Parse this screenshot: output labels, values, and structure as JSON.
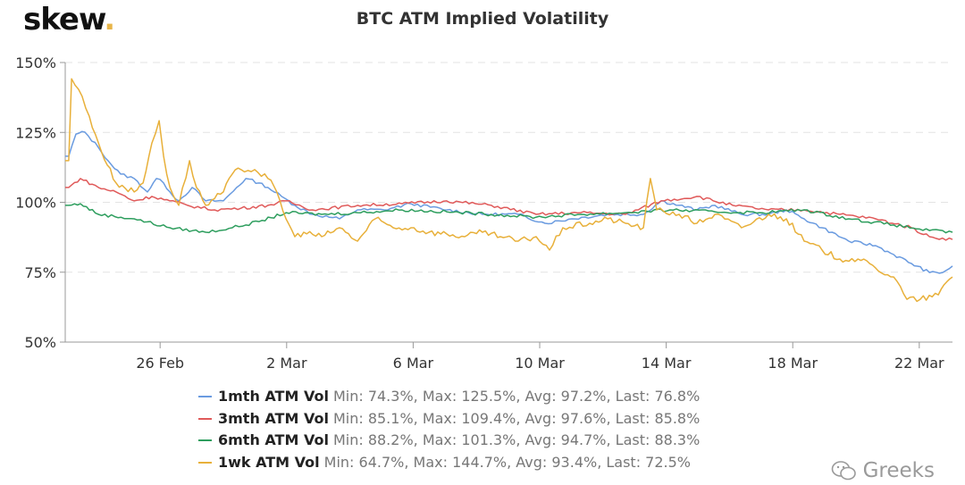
{
  "logo": {
    "text": "skew",
    "dot": "."
  },
  "watermark": {
    "text": "Greeks",
    "icon": "wechat-icon"
  },
  "chart_data": {
    "type": "line",
    "title": "BTC ATM Implied Volatility",
    "xlabel": "",
    "ylabel": "",
    "x_unit": "days since 23 Feb",
    "xlim": [
      0,
      28.05
    ],
    "ylim": [
      50,
      150
    ],
    "yticks": [
      {
        "v": 50,
        "label": "50%"
      },
      {
        "v": 75,
        "label": "75%"
      },
      {
        "v": 100,
        "label": "100%"
      },
      {
        "v": 125,
        "label": "125%"
      },
      {
        "v": 150,
        "label": "150%"
      }
    ],
    "xticks": [
      {
        "v": 3,
        "label": "26 Feb"
      },
      {
        "v": 7,
        "label": "2 Mar"
      },
      {
        "v": 11,
        "label": "6 Mar"
      },
      {
        "v": 15,
        "label": "10 Mar"
      },
      {
        "v": 19,
        "label": "14 Mar"
      },
      {
        "v": 23,
        "label": "18 Mar"
      },
      {
        "v": 27,
        "label": "22 Mar"
      }
    ],
    "grid": "horizontal dashed",
    "legend_position": "bottom",
    "series": [
      {
        "name": "1mth ATM Vol",
        "stats": "Min: 74.3%, Max: 125.5%, Avg: 97.2%, Last: 76.8%",
        "color": "#6a9be0",
        "points": [
          [
            0,
            116.5
          ],
          [
            0.11,
            116.5
          ],
          [
            0.34,
            124.4
          ],
          [
            0.62,
            125.1
          ],
          [
            1.05,
            119.6
          ],
          [
            1.47,
            113.3
          ],
          [
            1.75,
            110.1
          ],
          [
            2.18,
            108.5
          ],
          [
            2.6,
            103.7
          ],
          [
            2.88,
            108.5
          ],
          [
            3.11,
            106.9
          ],
          [
            3.31,
            103.7
          ],
          [
            3.59,
            100.5
          ],
          [
            4.01,
            105.3
          ],
          [
            4.44,
            100.5
          ],
          [
            5.0,
            100.5
          ],
          [
            5.42,
            105.3
          ],
          [
            5.71,
            108.5
          ],
          [
            6.13,
            106.9
          ],
          [
            6.41,
            105.3
          ],
          [
            6.84,
            102.1
          ],
          [
            7.26,
            98.9
          ],
          [
            7.82,
            95.7
          ],
          [
            8.67,
            94.1
          ],
          [
            9.24,
            97.3
          ],
          [
            10.08,
            97.3
          ],
          [
            10.93,
            99.5
          ],
          [
            12.06,
            97.3
          ],
          [
            13.19,
            95.7
          ],
          [
            14.32,
            95.7
          ],
          [
            15.17,
            92.5
          ],
          [
            16.02,
            94.1
          ],
          [
            17.15,
            95.7
          ],
          [
            18.28,
            95.7
          ],
          [
            18.84,
            100.5
          ],
          [
            19.41,
            98.9
          ],
          [
            19.97,
            97.3
          ],
          [
            20.54,
            98.9
          ],
          [
            21.38,
            95.7
          ],
          [
            22.23,
            95.7
          ],
          [
            22.8,
            97.3
          ],
          [
            23.36,
            94.1
          ],
          [
            23.93,
            90.9
          ],
          [
            24.77,
            86.1
          ],
          [
            25.62,
            84.5
          ],
          [
            26.19,
            81.3
          ],
          [
            26.75,
            78.1
          ],
          [
            27.32,
            74.9
          ],
          [
            27.74,
            74.9
          ],
          [
            28.05,
            77.2
          ]
        ]
      },
      {
        "name": "3mth ATM Vol",
        "stats": "Min: 85.1%, Max: 109.4%, Avg: 97.6%, Last: 85.8%",
        "color": "#e05a5a",
        "points": [
          [
            0,
            105.3
          ],
          [
            0.11,
            105.3
          ],
          [
            0.48,
            108.5
          ],
          [
            1.05,
            105.3
          ],
          [
            1.61,
            103.7
          ],
          [
            2.18,
            100.5
          ],
          [
            2.74,
            102.1
          ],
          [
            3.31,
            100.5
          ],
          [
            3.87,
            98.9
          ],
          [
            4.72,
            97.3
          ],
          [
            5.56,
            97.9
          ],
          [
            6.41,
            98.9
          ],
          [
            6.98,
            100.5
          ],
          [
            7.82,
            97.3
          ],
          [
            9.24,
            98.9
          ],
          [
            10.65,
            99.5
          ],
          [
            12.06,
            100.5
          ],
          [
            13.47,
            98.9
          ],
          [
            14.89,
            95.7
          ],
          [
            16.3,
            96.3
          ],
          [
            17.71,
            95.7
          ],
          [
            18.84,
            100.5
          ],
          [
            19.97,
            102.1
          ],
          [
            21.1,
            98.9
          ],
          [
            22.23,
            97.3
          ],
          [
            23.36,
            97.3
          ],
          [
            24.49,
            95.7
          ],
          [
            25.62,
            94.1
          ],
          [
            26.75,
            90.9
          ],
          [
            27.32,
            87.7
          ],
          [
            28.05,
            86.7
          ]
        ]
      },
      {
        "name": "6mth ATM Vol",
        "stats": "Min: 88.2%, Max: 101.3%, Avg: 94.7%, Last: 88.3%",
        "color": "#2e9e5e",
        "points": [
          [
            0,
            98.9
          ],
          [
            0.11,
            98.9
          ],
          [
            0.48,
            99.5
          ],
          [
            1.05,
            95.7
          ],
          [
            2.18,
            94.1
          ],
          [
            3.31,
            90.9
          ],
          [
            4.44,
            89.3
          ],
          [
            5.28,
            90.9
          ],
          [
            6.13,
            93.1
          ],
          [
            6.98,
            96.3
          ],
          [
            8.11,
            95.7
          ],
          [
            9.24,
            96.3
          ],
          [
            10.65,
            97.3
          ],
          [
            12.06,
            96.6
          ],
          [
            13.47,
            95.7
          ],
          [
            14.89,
            94.7
          ],
          [
            16.3,
            95.7
          ],
          [
            17.71,
            96.3
          ],
          [
            19.12,
            97.3
          ],
          [
            20.54,
            96.6
          ],
          [
            21.95,
            96.3
          ],
          [
            23.36,
            97.3
          ],
          [
            24.77,
            94.1
          ],
          [
            26.19,
            91.9
          ],
          [
            27.32,
            89.9
          ],
          [
            28.05,
            89.3
          ]
        ]
      },
      {
        "name": "1wk ATM Vol",
        "stats": "Min: 64.7%, Max: 144.7%, Avg: 93.4%, Last: 72.5%",
        "color": "#e8b03a",
        "points": [
          [
            0,
            114.9
          ],
          [
            0.11,
            114.9
          ],
          [
            0.2,
            144.2
          ],
          [
            0.42,
            140.4
          ],
          [
            0.76,
            130.8
          ],
          [
            1.05,
            121.2
          ],
          [
            1.33,
            113.3
          ],
          [
            1.61,
            106.9
          ],
          [
            2.18,
            103.7
          ],
          [
            2.46,
            106.9
          ],
          [
            2.74,
            121.2
          ],
          [
            2.97,
            129.2
          ],
          [
            3.11,
            116.5
          ],
          [
            3.31,
            105.3
          ],
          [
            3.59,
            98.9
          ],
          [
            3.93,
            114.9
          ],
          [
            4.15,
            105.3
          ],
          [
            4.44,
            98.9
          ],
          [
            5.0,
            103.7
          ],
          [
            5.28,
            110.1
          ],
          [
            5.56,
            111.7
          ],
          [
            5.99,
            111.7
          ],
          [
            6.41,
            108.5
          ],
          [
            6.69,
            103.7
          ],
          [
            6.98,
            94.1
          ],
          [
            7.26,
            87.7
          ],
          [
            7.54,
            89.3
          ],
          [
            8.11,
            87.7
          ],
          [
            8.67,
            90.9
          ],
          [
            9.24,
            86.1
          ],
          [
            9.8,
            94.1
          ],
          [
            10.37,
            90.9
          ],
          [
            10.93,
            90.9
          ],
          [
            11.5,
            89.3
          ],
          [
            12.06,
            88.7
          ],
          [
            12.63,
            87.7
          ],
          [
            13.19,
            89.3
          ],
          [
            13.76,
            87.7
          ],
          [
            14.32,
            86.1
          ],
          [
            14.89,
            87.7
          ],
          [
            15.31,
            82.9
          ],
          [
            15.73,
            90.9
          ],
          [
            16.58,
            92.5
          ],
          [
            17.15,
            94.1
          ],
          [
            17.71,
            92.5
          ],
          [
            18.28,
            90.9
          ],
          [
            18.5,
            108.5
          ],
          [
            18.7,
            97.3
          ],
          [
            19.41,
            95.7
          ],
          [
            19.97,
            92.5
          ],
          [
            20.54,
            95.7
          ],
          [
            21.38,
            90.9
          ],
          [
            22.23,
            95.7
          ],
          [
            22.8,
            94.1
          ],
          [
            23.36,
            86.1
          ],
          [
            23.93,
            82.9
          ],
          [
            24.49,
            79.7
          ],
          [
            25.06,
            79.7
          ],
          [
            25.62,
            76.5
          ],
          [
            26.19,
            73.3
          ],
          [
            26.61,
            65.3
          ],
          [
            27.03,
            65.3
          ],
          [
            27.6,
            66.9
          ],
          [
            27.88,
            71.7
          ],
          [
            28.05,
            73.3
          ]
        ]
      }
    ]
  }
}
